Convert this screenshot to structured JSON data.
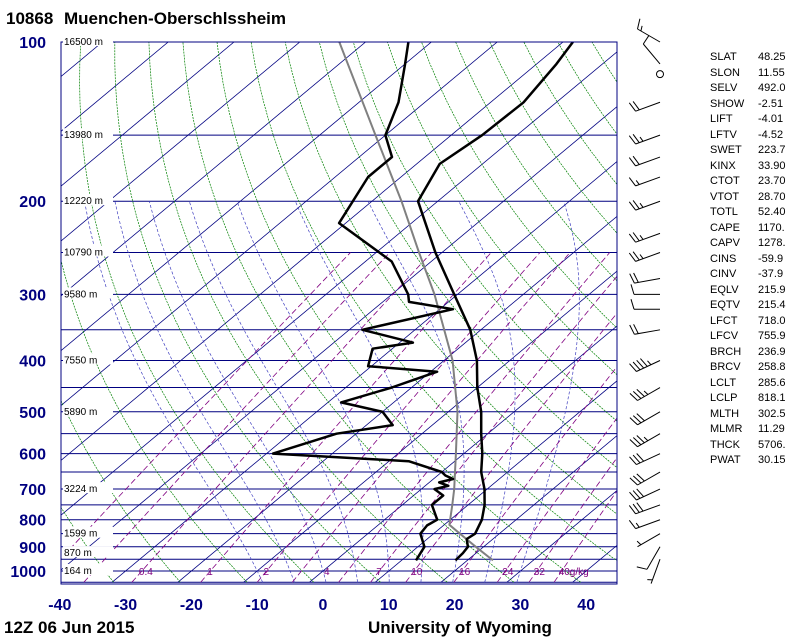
{
  "header": {
    "station_id": "10868",
    "station_name": "Muenchen-Oberschlssheim"
  },
  "footer": {
    "time_label": "12Z 06 Jun 2015",
    "credit": "University of Wyoming"
  },
  "colors": {
    "isobar": "#000080",
    "isotherm": "#000080",
    "dry_adiabat": "#008000",
    "moist_adiabat": "#4040c0",
    "mixing_ratio": "#800080",
    "sounding": "#000000",
    "parcel": "#808080",
    "wind_barb": "#000000"
  },
  "indices": [
    {
      "name": "SLAT",
      "value": "48.25"
    },
    {
      "name": "SLON",
      "value": "11.55"
    },
    {
      "name": "SELV",
      "value": "492.0"
    },
    {
      "name": "SHOW",
      "value": "-2.51"
    },
    {
      "name": "LIFT",
      "value": "-4.01"
    },
    {
      "name": "LFTV",
      "value": "-4.52"
    },
    {
      "name": "SWET",
      "value": "223.7"
    },
    {
      "name": "KINX",
      "value": "33.90"
    },
    {
      "name": "CTOT",
      "value": "23.70"
    },
    {
      "name": "VTOT",
      "value": "28.70"
    },
    {
      "name": "TOTL",
      "value": "52.40"
    },
    {
      "name": "CAPE",
      "value": "1170."
    },
    {
      "name": "CAPV",
      "value": "1278."
    },
    {
      "name": "CINS",
      "value": "-59.9"
    },
    {
      "name": "CINV",
      "value": "-37.9"
    },
    {
      "name": "EQLV",
      "value": "215.9"
    },
    {
      "name": "EQTV",
      "value": "215.4"
    },
    {
      "name": "LFCT",
      "value": "718.0"
    },
    {
      "name": "LFCV",
      "value": "755.9"
    },
    {
      "name": "BRCH",
      "value": "236.9"
    },
    {
      "name": "BRCV",
      "value": "258.8"
    },
    {
      "name": "LCLT",
      "value": "285.6"
    },
    {
      "name": "LCLP",
      "value": "818.1"
    },
    {
      "name": "MLTH",
      "value": "302.5"
    },
    {
      "name": "MLMR",
      "value": "11.29"
    },
    {
      "name": "THCK",
      "value": "5706."
    },
    {
      "name": "PWAT",
      "value": "30.15"
    }
  ],
  "chart_data": {
    "type": "skew-t",
    "pressure_axis": {
      "scale": "log",
      "range": [
        100,
        1050
      ],
      "ticks": [
        {
          "value": 100,
          "label": "100"
        },
        {
          "value": 200,
          "label": "200"
        },
        {
          "value": 300,
          "label": "300"
        },
        {
          "value": 400,
          "label": "400"
        },
        {
          "value": 500,
          "label": "500"
        },
        {
          "value": 600,
          "label": "600"
        },
        {
          "value": 700,
          "label": "700"
        },
        {
          "value": 800,
          "label": "800"
        },
        {
          "value": 900,
          "label": "900"
        },
        {
          "value": 1000,
          "label": "1000"
        }
      ],
      "gridlines": [
        100,
        150,
        200,
        250,
        300,
        350,
        400,
        450,
        500,
        550,
        600,
        650,
        700,
        750,
        800,
        850,
        900,
        950,
        1000,
        1050
      ]
    },
    "temperature_axis": {
      "range_at_surface": [
        -40,
        45
      ],
      "ticks": [
        -40,
        -30,
        -20,
        -10,
        0,
        10,
        20,
        30,
        40
      ],
      "isotherm_range": [
        -150,
        45
      ],
      "isotherm_step": 10
    },
    "height_labels": [
      {
        "pressure": 100,
        "label": "16500 m"
      },
      {
        "pressure": 150,
        "label": "13980 m"
      },
      {
        "pressure": 200,
        "label": "12220 m"
      },
      {
        "pressure": 250,
        "label": "10790 m"
      },
      {
        "pressure": 300,
        "label": "9580 m"
      },
      {
        "pressure": 400,
        "label": "7550 m"
      },
      {
        "pressure": 500,
        "label": "5890 m"
      },
      {
        "pressure": 700,
        "label": "3224 m"
      },
      {
        "pressure": 850,
        "label": "1599 m"
      },
      {
        "pressure": 925,
        "label": "870 m"
      },
      {
        "pressure": 1000,
        "label": "164 m"
      }
    ],
    "mixing_ratio_labels": [
      {
        "w": 0.4,
        "label": "0.4"
      },
      {
        "w": 1,
        "label": "1"
      },
      {
        "w": 2,
        "label": "2"
      },
      {
        "w": 4,
        "label": "4"
      },
      {
        "w": 7,
        "label": "7"
      },
      {
        "w": 10,
        "label": "10"
      },
      {
        "w": 16,
        "label": "16"
      },
      {
        "w": 24,
        "label": "24"
      },
      {
        "w": 32,
        "label": "32"
      },
      {
        "w": 40,
        "label": "40g/kg"
      }
    ],
    "mixing_ratio_lines": [
      0.1,
      0.2,
      0.4,
      1,
      2,
      3,
      5,
      7,
      10,
      16,
      24,
      32,
      40
    ],
    "dry_adiabats_K": [
      240,
      250,
      260,
      270,
      280,
      290,
      300,
      310,
      320,
      330,
      340,
      350,
      360,
      370,
      380,
      390,
      400,
      410,
      420,
      440,
      460,
      480,
      500,
      520
    ],
    "moist_adiabats_C": [
      -10,
      -5,
      0,
      5,
      10,
      15,
      20,
      25,
      30
    ],
    "temperature": [
      {
        "p": 955,
        "t": 18.2
      },
      {
        "p": 925,
        "t": 18.0
      },
      {
        "p": 900,
        "t": 17.6
      },
      {
        "p": 870,
        "t": 16.0
      },
      {
        "p": 850,
        "t": 16.3
      },
      {
        "p": 800,
        "t": 14.8
      },
      {
        "p": 750,
        "t": 12.5
      },
      {
        "p": 700,
        "t": 9.6
      },
      {
        "p": 650,
        "t": 6.0
      },
      {
        "p": 600,
        "t": 2.8
      },
      {
        "p": 550,
        "t": -1.0
      },
      {
        "p": 500,
        "t": -5.0
      },
      {
        "p": 450,
        "t": -10.0
      },
      {
        "p": 400,
        "t": -15.0
      },
      {
        "p": 350,
        "t": -21.6
      },
      {
        "p": 300,
        "t": -30.5
      },
      {
        "p": 250,
        "t": -41.0
      },
      {
        "p": 200,
        "t": -53.0
      },
      {
        "p": 170,
        "t": -56.5
      },
      {
        "p": 150,
        "t": -55.3
      },
      {
        "p": 130,
        "t": -55.0
      },
      {
        "p": 110,
        "t": -57.0
      },
      {
        "p": 100,
        "t": -58.5
      }
    ],
    "dewpoint": [
      {
        "p": 955,
        "t": 12.2
      },
      {
        "p": 900,
        "t": 11.0
      },
      {
        "p": 850,
        "t": 8.0
      },
      {
        "p": 820,
        "t": 7.5
      },
      {
        "p": 800,
        "t": 8.0
      },
      {
        "p": 750,
        "t": 4.5
      },
      {
        "p": 720,
        "t": 4.5
      },
      {
        "p": 700,
        "t": 2.0
      },
      {
        "p": 690,
        "t": 3.5
      },
      {
        "p": 680,
        "t": 1.5
      },
      {
        "p": 670,
        "t": 3.0
      },
      {
        "p": 660,
        "t": 1.2
      },
      {
        "p": 650,
        "t": 0.0
      },
      {
        "p": 620,
        "t": -7.0
      },
      {
        "p": 600,
        "t": -29.0
      },
      {
        "p": 550,
        "t": -23.0
      },
      {
        "p": 530,
        "t": -16.0
      },
      {
        "p": 500,
        "t": -20.0
      },
      {
        "p": 480,
        "t": -28.0
      },
      {
        "p": 450,
        "t": -23.0
      },
      {
        "p": 420,
        "t": -19.0
      },
      {
        "p": 410,
        "t": -30.5
      },
      {
        "p": 380,
        "t": -33.0
      },
      {
        "p": 370,
        "t": -28.0
      },
      {
        "p": 350,
        "t": -38.0
      },
      {
        "p": 320,
        "t": -28.0
      },
      {
        "p": 310,
        "t": -36.0
      },
      {
        "p": 300,
        "t": -37.5
      },
      {
        "p": 260,
        "t": -46.0
      },
      {
        "p": 220,
        "t": -61.0
      },
      {
        "p": 180,
        "t": -65.0
      },
      {
        "p": 165,
        "t": -65.0
      },
      {
        "p": 150,
        "t": -70.0
      },
      {
        "p": 130,
        "t": -74.0
      },
      {
        "p": 110,
        "t": -80.0
      },
      {
        "p": 100,
        "t": -83.5
      }
    ],
    "parcel": [
      {
        "p": 955,
        "t": 23.9
      },
      {
        "p": 900,
        "t": 18.8
      },
      {
        "p": 850,
        "t": 14.0
      },
      {
        "p": 818,
        "t": 10.8
      },
      {
        "p": 750,
        "t": 7.6
      },
      {
        "p": 700,
        "t": 5.0
      },
      {
        "p": 600,
        "t": -1.2
      },
      {
        "p": 500,
        "t": -8.6
      },
      {
        "p": 400,
        "t": -18.7
      },
      {
        "p": 300,
        "t": -33.5
      },
      {
        "p": 250,
        "t": -43.5
      },
      {
        "p": 200,
        "t": -55.5
      },
      {
        "p": 150,
        "t": -71.5
      },
      {
        "p": 100,
        "t": -94.0
      }
    ],
    "wind_barbs": [
      {
        "p": 950,
        "dir": 200,
        "spd": 5
      },
      {
        "p": 900,
        "dir": 210,
        "spd": 10
      },
      {
        "p": 850,
        "dir": 240,
        "spd": 5
      },
      {
        "p": 800,
        "dir": 250,
        "spd": 15
      },
      {
        "p": 750,
        "dir": 250,
        "spd": 30
      },
      {
        "p": 700,
        "dir": 245,
        "spd": 30
      },
      {
        "p": 650,
        "dir": 240,
        "spd": 30
      },
      {
        "p": 600,
        "dir": 245,
        "spd": 30
      },
      {
        "p": 550,
        "dir": 240,
        "spd": 35
      },
      {
        "p": 500,
        "dir": 240,
        "spd": 30
      },
      {
        "p": 450,
        "dir": 240,
        "spd": 35
      },
      {
        "p": 400,
        "dir": 245,
        "spd": 45
      },
      {
        "p": 350,
        "dir": 260,
        "spd": 20
      },
      {
        "p": 320,
        "dir": 270,
        "spd": 10
      },
      {
        "p": 300,
        "dir": 270,
        "spd": 10
      },
      {
        "p": 280,
        "dir": 260,
        "spd": 20
      },
      {
        "p": 250,
        "dir": 250,
        "spd": 25
      },
      {
        "p": 230,
        "dir": 250,
        "spd": 25
      },
      {
        "p": 200,
        "dir": 250,
        "spd": 25
      },
      {
        "p": 180,
        "dir": 250,
        "spd": 15
      },
      {
        "p": 165,
        "dir": 250,
        "spd": 20
      },
      {
        "p": 150,
        "dir": 250,
        "spd": 25
      },
      {
        "p": 130,
        "dir": 250,
        "spd": 20
      },
      {
        "p": 115,
        "dir": 0,
        "spd": 0
      },
      {
        "p": 110,
        "dir": 320,
        "spd": 10
      },
      {
        "p": 100,
        "dir": 300,
        "spd": 15
      }
    ]
  }
}
